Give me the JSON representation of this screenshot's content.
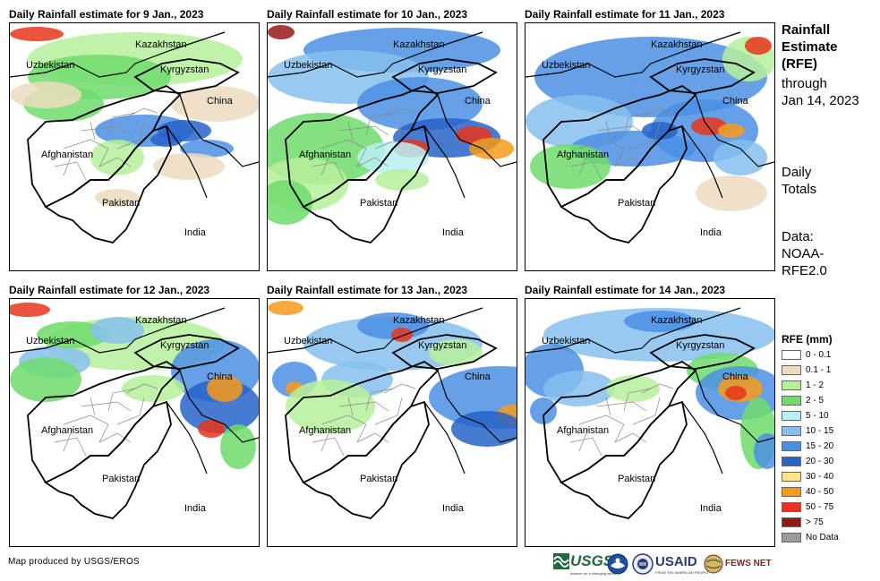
{
  "panels": [
    {
      "title": "Daily Rainfall estimate for 9 Jan., 2023"
    },
    {
      "title": "Daily Rainfall estimate for 10 Jan., 2023"
    },
    {
      "title": "Daily Rainfall estimate for 11 Jan., 2023"
    },
    {
      "title": "Daily Rainfall estimate for 12 Jan., 2023"
    },
    {
      "title": "Daily Rainfall estimate for 13 Jan., 2023"
    },
    {
      "title": "Daily Rainfall estimate for 14 Jan., 2023"
    }
  ],
  "country_labels": {
    "kazakhstan": "Kazakhstan",
    "uzbekistan": "Uzbekistan",
    "kyrgyzstan": "Kyrgyzstan",
    "china": "China",
    "afghanistan": "Afghanistan",
    "pakistan": "Pakistan",
    "india": "India"
  },
  "sidebar": {
    "title_line1": "Rainfall",
    "title_line2": "Estimate",
    "title_line3": "(RFE)",
    "through_line1": "through",
    "through_line2": "Jan 14, 2023",
    "totals_line1": "Daily",
    "totals_line2": "Totals",
    "data_line1": "Data:",
    "data_line2": "NOAA-",
    "data_line3": "RFE2.0"
  },
  "legend": {
    "title": "RFE (mm)",
    "items": [
      {
        "label": "0 - 0.1",
        "color": "#ffffff"
      },
      {
        "label": "0.1 - 1",
        "color": "#ecdcbf"
      },
      {
        "label": "1 - 2",
        "color": "#b6f09a"
      },
      {
        "label": "2 - 5",
        "color": "#6fdc6c"
      },
      {
        "label": "5 - 10",
        "color": "#b7f0f4"
      },
      {
        "label": "10 - 15",
        "color": "#86c0ee"
      },
      {
        "label": "15 - 20",
        "color": "#4a8fe4"
      },
      {
        "label": "20 - 30",
        "color": "#2763c9"
      },
      {
        "label": "30 - 40",
        "color": "#fde38a"
      },
      {
        "label": "40 - 50",
        "color": "#f79a1a"
      },
      {
        "label": "50 - 75",
        "color": "#e8351a"
      },
      {
        "label": "> 75",
        "color": "#9b1616"
      },
      {
        "label": "No Data",
        "color": "#9a9a9a"
      }
    ]
  },
  "credit": "Map produced by USGS/EROS",
  "logos": {
    "usgs": "USGS",
    "usgs_tagline": "science for a changing world",
    "usaid": "USAID",
    "usaid_tagline": "FROM THE AMERICAN PEOPLE",
    "fews": "FEWS NET"
  }
}
